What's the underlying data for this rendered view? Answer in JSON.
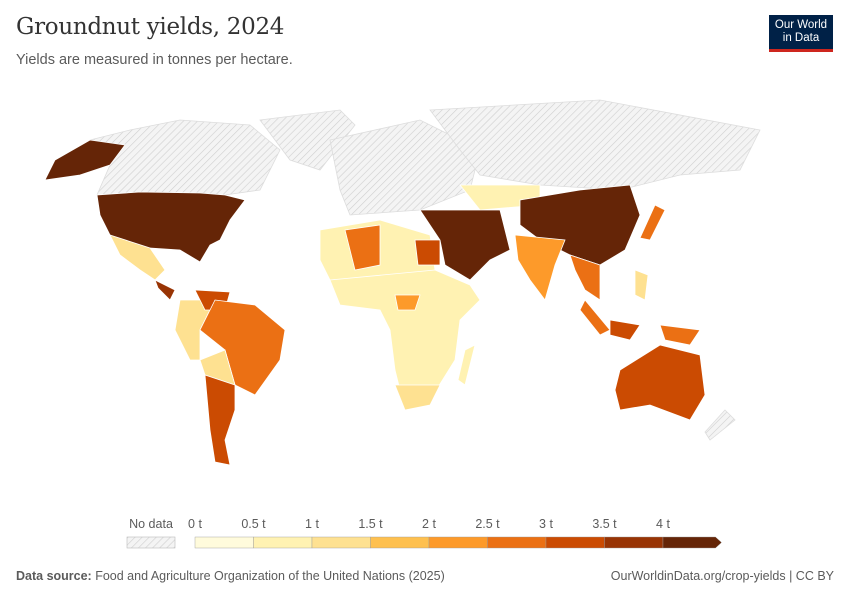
{
  "header": {
    "title": "Groundnut yields, 2024",
    "subtitle": "Yields are measured in tonnes per hectare.",
    "logo_text": "Our World in Data"
  },
  "legend": {
    "no_data_label": "No data",
    "ticks": [
      "0 t",
      "0.5 t",
      "1 t",
      "1.5 t",
      "2 t",
      "2.5 t",
      "3 t",
      "3.5 t",
      "4 t"
    ],
    "bins": [
      0,
      0.5,
      1,
      1.5,
      2,
      2.5,
      3,
      3.5,
      4
    ],
    "colors": [
      "#fffbdc",
      "#fff2b2",
      "#fee191",
      "#fec04f",
      "#fd9a2a",
      "#eb7014",
      "#cb4b02",
      "#983404",
      "#652507"
    ],
    "no_data_color": "#eeeeee"
  },
  "chart_data": {
    "type": "choropleth",
    "title": "Groundnut yields, 2024",
    "unit": "tonnes per hectare",
    "regions": [
      {
        "name": "United States",
        "value": 4.3
      },
      {
        "name": "Alaska",
        "value": 4.3
      },
      {
        "name": "Canada",
        "value": null
      },
      {
        "name": "Greenland",
        "value": null
      },
      {
        "name": "Mexico",
        "value": 1.3
      },
      {
        "name": "Central America",
        "value": 3.8
      },
      {
        "name": "Venezuela",
        "value": 3.2
      },
      {
        "name": "Colombia & Peru",
        "value": 1.2
      },
      {
        "name": "Brazil",
        "value": 2.8
      },
      {
        "name": "Bolivia & Paraguay",
        "value": 1.3
      },
      {
        "name": "Argentina",
        "value": 3.3
      },
      {
        "name": "North Africa",
        "value": 0.8
      },
      {
        "name": "Algeria",
        "value": 2.7
      },
      {
        "name": "Egypt",
        "value": 3.3
      },
      {
        "name": "Sub-Saharan Africa",
        "value": 0.6
      },
      {
        "name": "Central African Republic",
        "value": 2.3
      },
      {
        "name": "South Africa",
        "value": 1.3
      },
      {
        "name": "Madagascar",
        "value": 0.7
      },
      {
        "name": "Europe",
        "value": null
      },
      {
        "name": "Russia",
        "value": null
      },
      {
        "name": "Kazakhstan",
        "value": 0.7
      },
      {
        "name": "Middle East",
        "value": 4.2
      },
      {
        "name": "China",
        "value": 4.2
      },
      {
        "name": "India",
        "value": 2.1
      },
      {
        "name": "Southeast Asia",
        "value": 2.6
      },
      {
        "name": "Sumatra",
        "value": 2.9
      },
      {
        "name": "Java & Borneo",
        "value": 3.0
      },
      {
        "name": "Papua",
        "value": 2.8
      },
      {
        "name": "Japan",
        "value": 2.6
      },
      {
        "name": "Philippines",
        "value": 1.1
      },
      {
        "name": "Australia",
        "value": 3.1
      },
      {
        "name": "New Zealand",
        "value": null
      }
    ]
  },
  "footer": {
    "source_label": "Data source:",
    "source_text": "Food and Agriculture Organization of the United Nations (2025)",
    "link": "OurWorldinData.org/crop-yields | CC BY"
  }
}
